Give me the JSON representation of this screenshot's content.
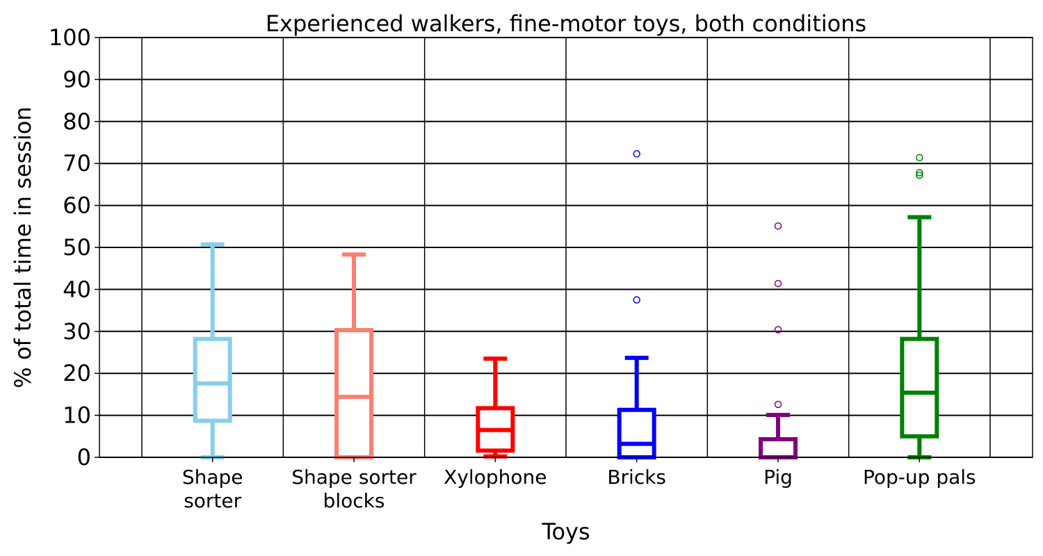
{
  "chart_data": {
    "type": "box",
    "title": "Experienced walkers, fine-motor toys, both conditions",
    "xlabel": "Toys",
    "ylabel": "% of total time in session",
    "ylim": [
      0,
      100
    ],
    "yticks": [
      "0",
      "10",
      "20",
      "30",
      "40",
      "50",
      "60",
      "70",
      "80",
      "90",
      "100"
    ],
    "grid": true,
    "categories": [
      {
        "label_lines": [
          "Shape",
          "sorter"
        ],
        "color": "#87ceeb",
        "whisker_low": 0,
        "q1": 8.7,
        "median": 17.6,
        "q3": 28.2,
        "whisker_high": 50.7,
        "outliers": []
      },
      {
        "label_lines": [
          "Shape sorter",
          "blocks"
        ],
        "color": "#fa8072",
        "whisker_low": 0,
        "q1": 0,
        "median": 14.4,
        "q3": 30.3,
        "whisker_high": 48.3,
        "outliers": []
      },
      {
        "label_lines": [
          "Xylophone"
        ],
        "color": "#ff0000",
        "whisker_low": 0.2,
        "q1": 1.6,
        "median": 6.5,
        "q3": 11.7,
        "whisker_high": 23.5,
        "outliers": []
      },
      {
        "label_lines": [
          "Bricks"
        ],
        "color": "#0000ff",
        "whisker_low": 0,
        "q1": 0,
        "median": 3.2,
        "q3": 11.3,
        "whisker_high": 23.7,
        "outliers": [
          37.5,
          72.3
        ]
      },
      {
        "label_lines": [
          "Pig"
        ],
        "color": "#800080",
        "whisker_low": 0,
        "q1": 0,
        "median": 0,
        "q3": 4.3,
        "whisker_high": 10.1,
        "outliers": [
          12.6,
          30.4,
          41.4,
          55.1
        ]
      },
      {
        "label_lines": [
          "Pop-up pals"
        ],
        "color": "#008000",
        "whisker_low": 0,
        "q1": 5.0,
        "median": 15.4,
        "q3": 28.2,
        "whisker_high": 57.2,
        "outliers": [
          67.2,
          67.8,
          71.4
        ]
      }
    ]
  }
}
